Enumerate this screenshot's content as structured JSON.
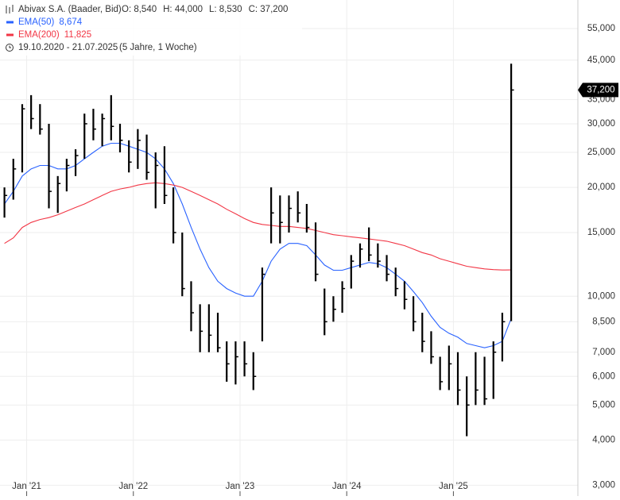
{
  "chart_data": {
    "type": "ohlc",
    "title": "Abivax S.A. (Baader, Bid)",
    "ohlc_labels": [
      "O: 8,540",
      "H: 44,000",
      "L: 8,530",
      "C: 37,200"
    ],
    "date_range": "19.10.2020 - 21.07.2025",
    "period": "(5 Jahre, 1 Woche)",
    "last_label": "37,200",
    "log_scale": true,
    "grid": true,
    "x": [
      "2020-10",
      "2020-11",
      "2020-12",
      "2021-01",
      "2021-02",
      "2021-03",
      "2021-04",
      "2021-05",
      "2021-06",
      "2021-07",
      "2021-08",
      "2021-09",
      "2021-10",
      "2021-11",
      "2021-12",
      "2022-01",
      "2022-02",
      "2022-03",
      "2022-04",
      "2022-05",
      "2022-06",
      "2022-07",
      "2022-08",
      "2022-09",
      "2022-10",
      "2022-11",
      "2022-12",
      "2023-01",
      "2023-02",
      "2023-03",
      "2023-04",
      "2023-05",
      "2023-06",
      "2023-07",
      "2023-08",
      "2023-09",
      "2023-10",
      "2023-11",
      "2023-12",
      "2024-01",
      "2024-02",
      "2024-03",
      "2024-04",
      "2024-05",
      "2024-06",
      "2024-07",
      "2024-08",
      "2024-09",
      "2024-10",
      "2024-11",
      "2024-12",
      "2025-01",
      "2025-02",
      "2025-03",
      "2025-04",
      "2025-05",
      "2025-06",
      "2025-07"
    ],
    "low": [
      16.5,
      18.5,
      22,
      29,
      28,
      17.5,
      17,
      19.5,
      21.5,
      24,
      27,
      26,
      27,
      25,
      22,
      22.5,
      21,
      17.5,
      18,
      14,
      10,
      8,
      7,
      7,
      7,
      5.8,
      5.7,
      6,
      5.5,
      7.5,
      14,
      14,
      15,
      16,
      15,
      11,
      7.8,
      8.5,
      9,
      10.5,
      12,
      12.5,
      12,
      11,
      10,
      9.2,
      8,
      7,
      6.5,
      5.5,
      5.5,
      5,
      4.1,
      5,
      5,
      5.2,
      6.6,
      8.53
    ],
    "high": [
      20,
      24,
      34,
      36,
      34,
      30,
      21.5,
      24,
      25.5,
      32,
      33,
      32,
      36,
      30,
      27,
      29,
      28,
      25,
      26,
      20,
      15,
      11,
      9.5,
      9.5,
      9,
      7.5,
      7.5,
      7.5,
      7,
      12,
      20,
      19,
      19,
      19.5,
      18,
      16,
      10.5,
      10,
      11,
      13,
      14,
      15.5,
      14,
      13,
      12,
      11,
      10,
      9,
      8,
      6.8,
      7.3,
      7,
      6,
      7,
      6.8,
      7.5,
      9,
      44
    ],
    "close": [
      19,
      22.5,
      33,
      31,
      29,
      19.5,
      20.5,
      23,
      24.5,
      30,
      29,
      31,
      29.5,
      27,
      23.5,
      27,
      22,
      23,
      19,
      15,
      10.5,
      9,
      8,
      7.8,
      7.2,
      6.5,
      6.8,
      6.5,
      6,
      11.5,
      17,
      16,
      17.5,
      17,
      15.5,
      11.5,
      8.5,
      9.2,
      10.5,
      12.5,
      13.5,
      13,
      12.5,
      11.5,
      10.5,
      9.8,
      8.5,
      7.5,
      6.8,
      5.8,
      6.5,
      5.5,
      5,
      5.5,
      5.2,
      7,
      8.5,
      37.2
    ],
    "series": [
      {
        "name": "EMA(50)",
        "legend_value": "8,674",
        "color": "#2962ff",
        "values": [
          18,
          19.5,
          21.5,
          22.5,
          23,
          23,
          22.5,
          22.5,
          23,
          24,
          25,
          26,
          26.5,
          26.5,
          26,
          25.5,
          25,
          24,
          22.5,
          20.5,
          18,
          15.5,
          13.5,
          12,
          11,
          10.5,
          10.2,
          10,
          10,
          11,
          12.5,
          13.5,
          14,
          14,
          13.8,
          13,
          12.2,
          11.8,
          11.8,
          12,
          12.2,
          12.4,
          12.3,
          12,
          11.5,
          11,
          10.3,
          9.6,
          8.8,
          8.2,
          7.9,
          7.7,
          7.4,
          7.3,
          7.2,
          7.3,
          7.5,
          8.674
        ]
      },
      {
        "name": "EMA(200)",
        "legend_value": "11,825",
        "color": "#f23645",
        "values": [
          14,
          14.5,
          15.5,
          16,
          16.3,
          16.5,
          16.8,
          17.2,
          17.6,
          18,
          18.5,
          19,
          19.5,
          19.8,
          20,
          20.3,
          20.5,
          20.6,
          20.5,
          20.3,
          20,
          19.5,
          19,
          18.5,
          18,
          17.4,
          16.9,
          16.4,
          16,
          15.8,
          15.7,
          15.6,
          15.6,
          15.5,
          15.4,
          15.2,
          15,
          14.8,
          14.7,
          14.6,
          14.5,
          14.4,
          14.3,
          14.2,
          14,
          13.8,
          13.5,
          13.2,
          13,
          12.7,
          12.5,
          12.3,
          12.1,
          12,
          11.9,
          11.85,
          11.82,
          11.825
        ]
      }
    ],
    "xlim": [
      "2020-10",
      "2026-03"
    ],
    "xticks": [
      {
        "value": "2021-01",
        "label": "Jan '21"
      },
      {
        "value": "2022-01",
        "label": "Jan '22"
      },
      {
        "value": "2023-01",
        "label": "Jan '23"
      },
      {
        "value": "2024-01",
        "label": "Jan '24"
      },
      {
        "value": "2025-01",
        "label": "Jan '25"
      }
    ],
    "ylim": [
      2.8,
      66
    ],
    "yticks": [
      {
        "value": 3,
        "label": "3,000"
      },
      {
        "value": 4,
        "label": "4,000"
      },
      {
        "value": 5,
        "label": "5,000"
      },
      {
        "value": 6,
        "label": "6,000"
      },
      {
        "value": 7,
        "label": "7,000"
      },
      {
        "value": 8.5,
        "label": "8,500"
      },
      {
        "value": 10,
        "label": "10,000"
      },
      {
        "value": 15,
        "label": "15,000"
      },
      {
        "value": 20,
        "label": "20,000"
      },
      {
        "value": 25,
        "label": "25,000"
      },
      {
        "value": 30,
        "label": "30,000"
      },
      {
        "value": 35,
        "label": "35,000"
      },
      {
        "value": 45,
        "label": "45,000"
      },
      {
        "value": 55,
        "label": "55,000"
      }
    ]
  }
}
